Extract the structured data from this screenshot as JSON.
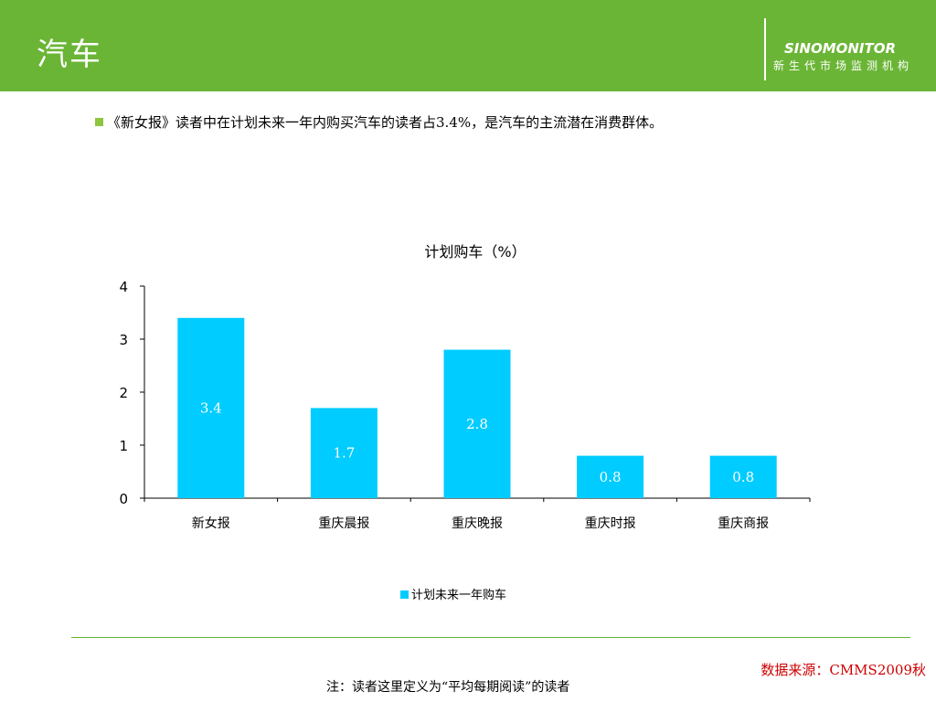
{
  "header": {
    "title": "汽车",
    "logo_name": "SINOMONITOR",
    "logo_sub": "新生代市场监测机构"
  },
  "bullet": {
    "text": "《新女报》读者中在计划未来一年内购买汽车的读者占3.4%，是汽车的主流潜在消费群体。"
  },
  "chart_data": {
    "type": "bar",
    "title": "计划购车（%）",
    "categories": [
      "新女报",
      "重庆晨报",
      "重庆晚报",
      "重庆时报",
      "重庆商报"
    ],
    "series": [
      {
        "name": "计划未来一年购车",
        "values": [
          3.4,
          1.7,
          2.8,
          0.8,
          0.8
        ]
      }
    ],
    "data_labels": [
      "3.4",
      "1.7",
      "2.8",
      "0.8",
      "0.8"
    ],
    "y_ticks": [
      "0",
      "1",
      "2",
      "3",
      "4"
    ],
    "ylim": [
      0,
      4
    ],
    "grid": false,
    "legend_position": "bottom",
    "bar_color": "#00ccff"
  },
  "footer": {
    "source": "数据来源：CMMS2009秋",
    "note": "注：读者这里定义为“平均每期阅读”的读者"
  }
}
